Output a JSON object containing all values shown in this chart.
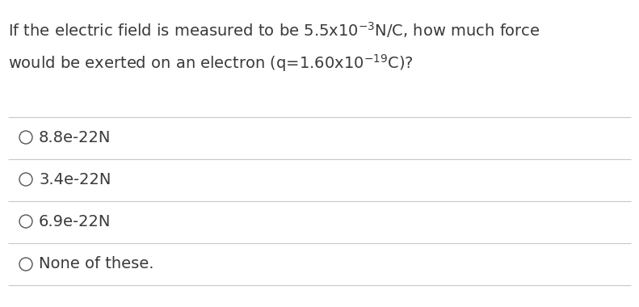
{
  "question_line1_part1": "If the electric field is measured to be 5.5x10",
  "question_line1_sup": "-3",
  "question_line1_part2": "N/C, how much force",
  "question_line2_part1": "would be exerted on an electron (q=1.60x10",
  "question_line2_sup": "-19",
  "question_line2_part2": "C)?",
  "options": [
    "8.8e-22N",
    "3.4e-22N",
    "6.9e-22N",
    "None of these."
  ],
  "bg_color": "#ffffff",
  "text_color": "#3a3a3a",
  "line_color": "#c8c8c8",
  "font_size": 14,
  "option_font_size": 14,
  "circle_color": "#555555"
}
